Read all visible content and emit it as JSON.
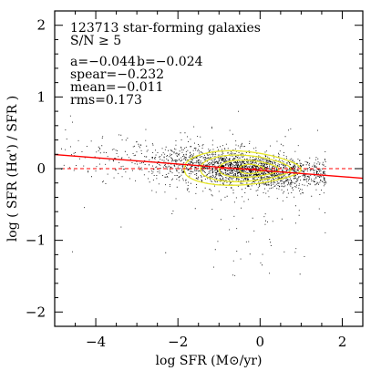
{
  "chart_data": {
    "type": "scatter",
    "title": "123713 star-forming galaxies",
    "subtitle": "S/N ≥ 5",
    "xlabel": "log SFR (M⊙/yr)",
    "ylabel": "log ( SFR (Hα') / SFR  )",
    "xlim": [
      -5,
      2.5
    ],
    "ylim": [
      -2.2,
      2.2
    ],
    "xticks": [
      -4,
      -2,
      0,
      2
    ],
    "xtick_labels": [
      "−4",
      "−2",
      "0",
      "2"
    ],
    "yticks": [
      -2,
      -1,
      0,
      1,
      2
    ],
    "ytick_labels": [
      "−2",
      "−1",
      "0",
      "1",
      "2"
    ],
    "grid": false,
    "stats": {
      "a_label": "a=−0.044",
      "b_label": "b=−0.024",
      "spear_label": "spear=−0.232",
      "mean_label": "mean=−0.011",
      "rms_label": "rms=0.173"
    },
    "fit_line": {
      "a": -0.044,
      "b": -0.024,
      "color": "#ff0000"
    },
    "zero_line": {
      "y": 0,
      "color": "#ff0000",
      "style": "dashed"
    },
    "density": {
      "n_points": 123713,
      "center_x": -0.3,
      "center_y": 0.0,
      "point_color": "#000000"
    },
    "contours": {
      "color": "#e6e62a",
      "levels": [
        {
          "x0": -1.85,
          "x1": 1.0,
          "hy": 0.25
        },
        {
          "x0": -1.45,
          "x1": 0.75,
          "hy": 0.19
        },
        {
          "x0": -1.0,
          "x1": 0.45,
          "hy": 0.12
        },
        {
          "x0": -0.5,
          "x1": 0.1,
          "hy": 0.06
        }
      ]
    }
  }
}
